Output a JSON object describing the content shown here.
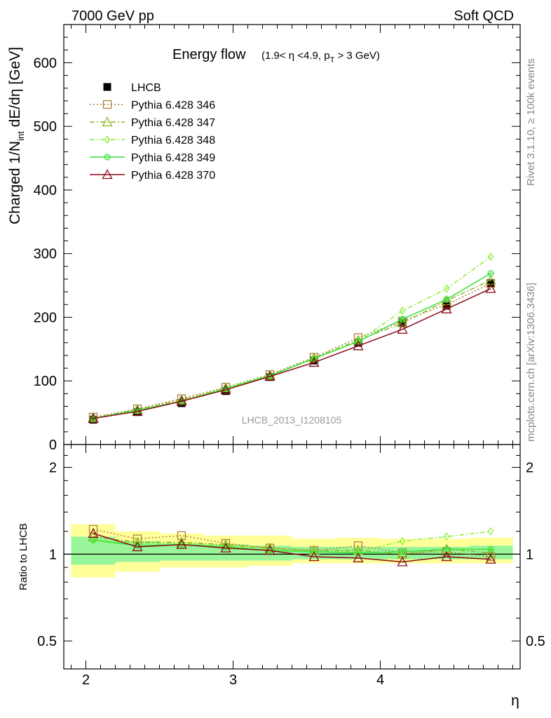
{
  "header": {
    "left": "7000 GeV pp",
    "right": "Soft QCD"
  },
  "side_texts": {
    "rivet": "Rivet 3.1.10, ≥ 100k events",
    "mcplots": "mcplots.cern.ch [arXiv:1306.3436]"
  },
  "colors": {
    "lhcb": "#000000",
    "p346": "#b07d3c",
    "p347": "#8fb31f",
    "p348": "#8ef03a",
    "p349": "#3ce13c",
    "p370": "#8b0a1a",
    "band_outer": "#ffff99",
    "band_inner": "#99f599"
  },
  "chart_data": [
    {
      "type": "line",
      "panel": "main",
      "title": "Energy flow",
      "title_note": "(1.9< η <4.9, p_T > 3 GeV)",
      "ylabel": "Charged 1/N_int dE/dη [GeV]",
      "watermark": "LHCB_2013_I1208105",
      "xlim": [
        1.85,
        4.95
      ],
      "ylim": [
        0,
        660
      ],
      "yticks": [
        0,
        100,
        200,
        300,
        400,
        500,
        600
      ],
      "x": [
        2.05,
        2.35,
        2.65,
        2.95,
        3.25,
        3.55,
        3.85,
        4.15,
        4.45,
        4.75
      ],
      "legend_position": "top-left",
      "series": [
        {
          "name": "LHCB",
          "marker": "filled-square",
          "values": [
            39,
            51,
            65,
            84,
            106,
            132,
            160,
            192,
            218,
            254
          ]
        },
        {
          "name": "Pythia 6.428 346",
          "marker": "open-square",
          "line": "dotted",
          "values": [
            43,
            56,
            72,
            90,
            110,
            137,
            168,
            194,
            220,
            253
          ]
        },
        {
          "name": "Pythia 6.428 347",
          "marker": "open-triangle",
          "line": "dashdot",
          "values": [
            42,
            55,
            70,
            89,
            109,
            136,
            164,
            191,
            226,
            258
          ]
        },
        {
          "name": "Pythia 6.428 348",
          "marker": "open-diamond",
          "line": "dashdot",
          "values": [
            41,
            54,
            69,
            89,
            109,
            135,
            163,
            210,
            245,
            295
          ]
        },
        {
          "name": "Pythia 6.428 349",
          "marker": "open-circle-cross",
          "line": "solid",
          "values": [
            41,
            54,
            68,
            88,
            108,
            135,
            162,
            197,
            228,
            269
          ]
        },
        {
          "name": "Pythia 6.428 370",
          "marker": "open-triangle",
          "line": "solid",
          "values": [
            41,
            52,
            68,
            86,
            107,
            129,
            155,
            181,
            213,
            245
          ]
        }
      ]
    },
    {
      "type": "line",
      "panel": "ratio",
      "ylabel": "Ratio to LHCB",
      "xlabel": "η",
      "xlim": [
        1.85,
        4.95
      ],
      "ylim": [
        0.4,
        2.4
      ],
      "log_y": true,
      "xticks": [
        2,
        3,
        4
      ],
      "yticks": [
        0.5,
        1,
        2
      ],
      "x": [
        2.05,
        2.35,
        2.65,
        2.95,
        3.25,
        3.55,
        3.85,
        4.15,
        4.45,
        4.75
      ],
      "bins": [
        [
          1.9,
          2.2
        ],
        [
          2.2,
          2.5
        ],
        [
          2.5,
          2.8
        ],
        [
          2.8,
          3.1
        ],
        [
          3.1,
          3.4
        ],
        [
          3.4,
          3.7
        ],
        [
          3.7,
          4.0
        ],
        [
          4.0,
          4.3
        ],
        [
          4.3,
          4.6
        ],
        [
          4.6,
          4.9
        ]
      ],
      "band_outer": [
        [
          0.83,
          1.27
        ],
        [
          0.87,
          1.2
        ],
        [
          0.9,
          1.18
        ],
        [
          0.9,
          1.16
        ],
        [
          0.91,
          1.16
        ],
        [
          0.93,
          1.13
        ],
        [
          0.93,
          1.14
        ],
        [
          0.93,
          1.13
        ],
        [
          0.93,
          1.13
        ],
        [
          0.93,
          1.14
        ]
      ],
      "band_inner": [
        [
          0.92,
          1.15
        ],
        [
          0.94,
          1.11
        ],
        [
          0.95,
          1.09
        ],
        [
          0.95,
          1.08
        ],
        [
          0.95,
          1.07
        ],
        [
          0.96,
          1.06
        ],
        [
          0.96,
          1.06
        ],
        [
          0.96,
          1.06
        ],
        [
          0.96,
          1.06
        ],
        [
          0.96,
          1.07
        ]
      ],
      "series": [
        {
          "name": "Pythia 6.428 346",
          "values": [
            1.22,
            1.13,
            1.16,
            1.09,
            1.05,
            1.03,
            1.07,
            1.01,
            1.02,
            0.98
          ]
        },
        {
          "name": "Pythia 6.428 347",
          "values": [
            1.15,
            1.1,
            1.1,
            1.08,
            1.05,
            1.03,
            1.03,
            1.0,
            1.04,
            1.01
          ]
        },
        {
          "name": "Pythia 6.428 348",
          "values": [
            1.12,
            1.09,
            1.09,
            1.07,
            1.04,
            1.02,
            1.02,
            1.11,
            1.15,
            1.2
          ]
        },
        {
          "name": "Pythia 6.428 349",
          "values": [
            1.12,
            1.07,
            1.08,
            1.06,
            1.03,
            1.02,
            1.01,
            1.02,
            1.04,
            1.04
          ]
        },
        {
          "name": "Pythia 6.428 370",
          "values": [
            1.18,
            1.06,
            1.08,
            1.05,
            1.03,
            0.98,
            0.97,
            0.94,
            0.98,
            0.96
          ]
        }
      ]
    }
  ]
}
